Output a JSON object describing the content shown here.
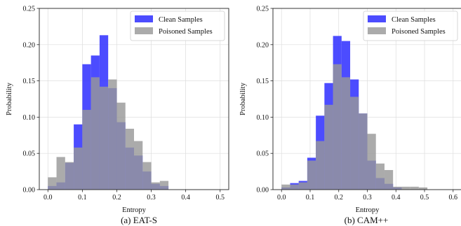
{
  "chart_data": [
    {
      "type": "bar",
      "caption": "(a) EAT-S",
      "xlabel": "Entropy",
      "ylabel": "Probability",
      "xlim": [
        -0.025,
        0.525
      ],
      "ylim": [
        0,
        0.25
      ],
      "xticks": [
        0.0,
        0.1,
        0.2,
        0.3,
        0.4,
        0.5
      ],
      "yticks": [
        0.0,
        0.05,
        0.1,
        0.15,
        0.2,
        0.25
      ],
      "xtick_labels": [
        "0.0",
        "0.1",
        "0.2",
        "0.3",
        "0.4",
        "0.5"
      ],
      "ytick_labels": [
        "0.00",
        "0.05",
        "0.10",
        "0.15",
        "0.20",
        "0.25"
      ],
      "grid": true,
      "legend_position": "top-right",
      "series": [
        {
          "name": "Clean Samples",
          "color": "#3333ff",
          "bin_start": 0.0,
          "bin_width": 0.025,
          "values": [
            0.005,
            0.01,
            0.037,
            0.09,
            0.173,
            0.185,
            0.213,
            0.14,
            0.093,
            0.058,
            0.047,
            0.025,
            0.008,
            0.005
          ]
        },
        {
          "name": "Poisoned Samples",
          "color": "#999999",
          "bin_start": 0.0,
          "bin_width": 0.025,
          "values": [
            0.017,
            0.045,
            0.038,
            0.058,
            0.11,
            0.155,
            0.142,
            0.152,
            0.12,
            0.084,
            0.067,
            0.038,
            0.01,
            0.012
          ]
        }
      ]
    },
    {
      "type": "bar",
      "caption": "(b) CAM++",
      "xlabel": "Entropy",
      "ylabel": "Probability",
      "xlim": [
        -0.03,
        0.63
      ],
      "ylim": [
        0,
        0.25
      ],
      "xticks": [
        0.0,
        0.1,
        0.2,
        0.3,
        0.4,
        0.5,
        0.6
      ],
      "yticks": [
        0.0,
        0.05,
        0.1,
        0.15,
        0.2,
        0.25
      ],
      "xtick_labels": [
        "0.0",
        "0.1",
        "0.2",
        "0.3",
        "0.4",
        "0.5",
        "0.6"
      ],
      "ytick_labels": [
        "0.00",
        "0.05",
        "0.10",
        "0.15",
        "0.20",
        "0.25"
      ],
      "grid": true,
      "legend_position": "top-right",
      "series": [
        {
          "name": "Clean Samples",
          "color": "#3333ff",
          "bin_start": 0.0,
          "bin_width": 0.03,
          "values": [
            0.003,
            0.009,
            0.012,
            0.044,
            0.102,
            0.147,
            0.212,
            0.205,
            0.152,
            0.105,
            0.04,
            0.016,
            0.008,
            0.003
          ]
        },
        {
          "name": "Poisoned Samples",
          "color": "#999999",
          "bin_start": 0.0,
          "bin_width": 0.03,
          "values": [
            0.007,
            0.007,
            0.01,
            0.04,
            0.067,
            0.117,
            0.173,
            0.155,
            0.128,
            0.105,
            0.077,
            0.036,
            0.027,
            0.004,
            0.004,
            0.004,
            0.003
          ]
        }
      ]
    }
  ]
}
